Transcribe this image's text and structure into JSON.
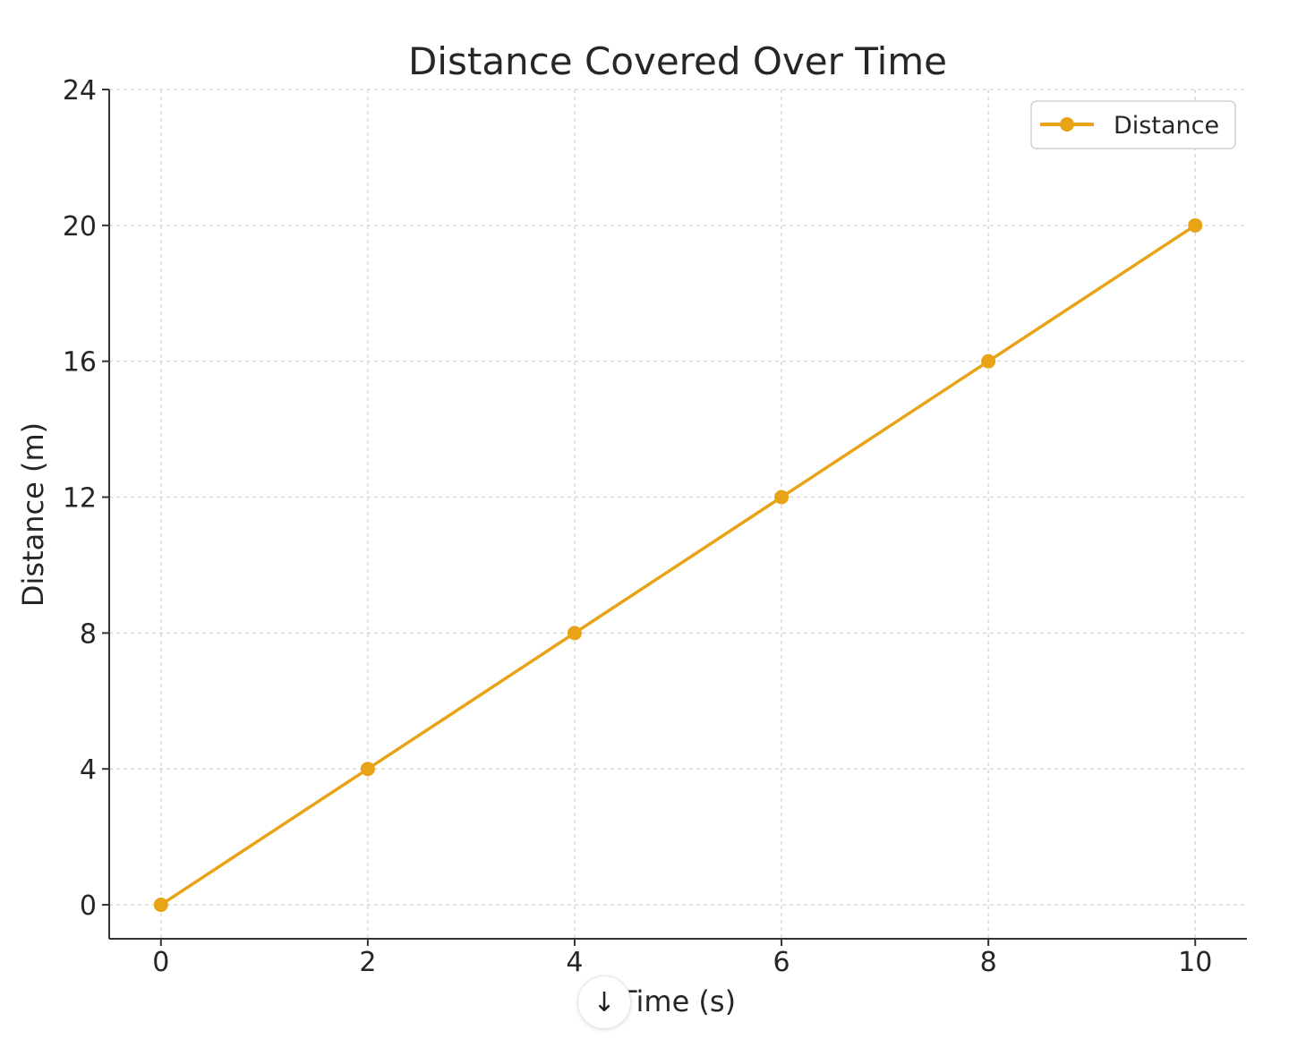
{
  "chart_data": {
    "type": "line",
    "title": "Distance Covered Over Time",
    "xlabel": "Time (s)",
    "ylabel": "Distance (m)",
    "x": [
      0,
      2,
      4,
      6,
      8,
      10
    ],
    "series": [
      {
        "name": "Distance",
        "values": [
          0,
          4,
          8,
          12,
          16,
          20
        ],
        "color": "#E8A317",
        "marker": "circle"
      }
    ],
    "xticks": [
      "0",
      "2",
      "4",
      "6",
      "8",
      "10"
    ],
    "yticks": [
      "0",
      "4",
      "8",
      "12",
      "16",
      "20",
      "24"
    ],
    "xlim": [
      -0.5,
      10.5
    ],
    "ylim": [
      -1,
      24
    ],
    "grid": true,
    "legend_position": "top-right"
  },
  "overlay": {
    "scroll_icon": "arrow-down-icon",
    "scroll_glyph": "↓"
  }
}
